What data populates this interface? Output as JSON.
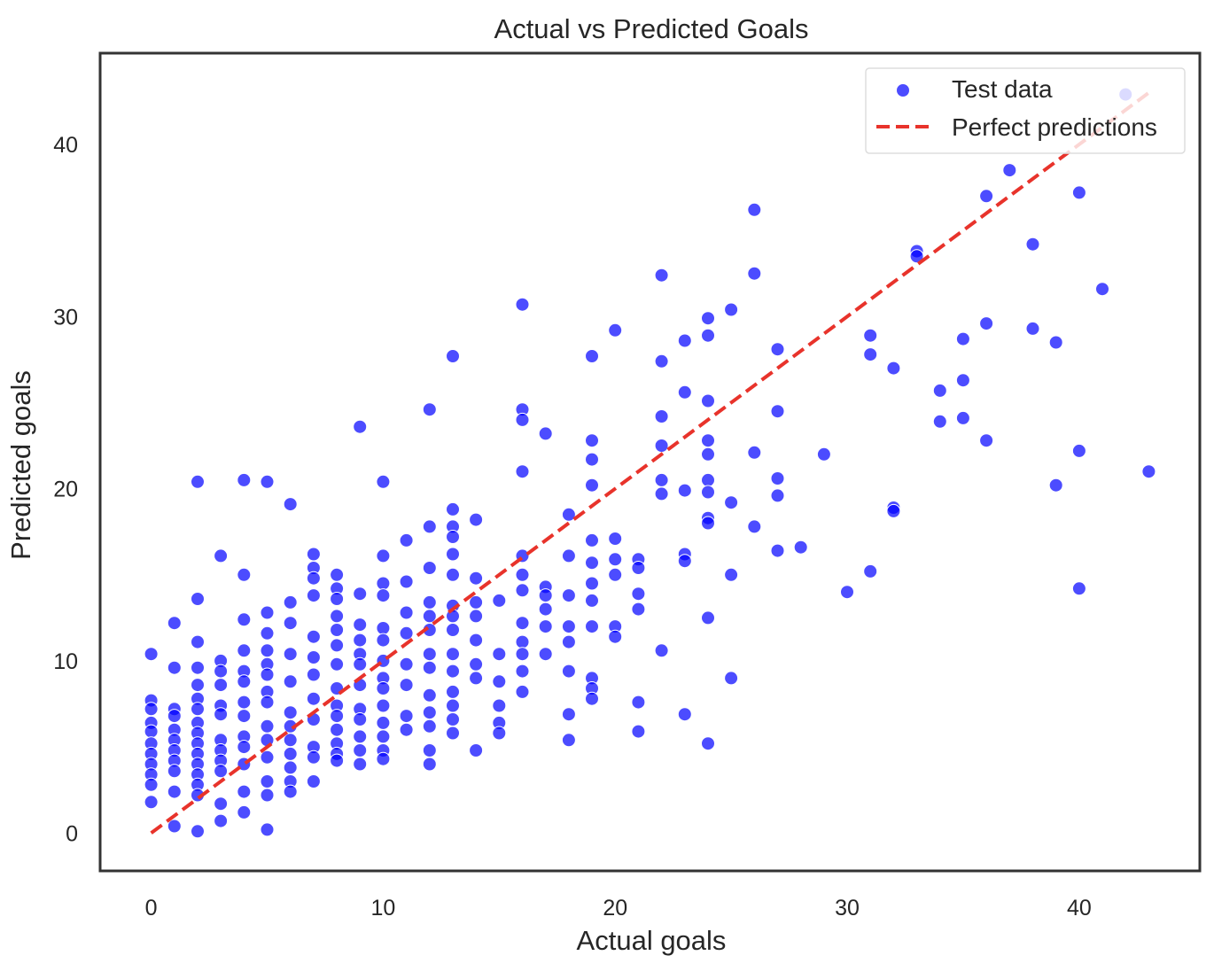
{
  "chart_data": {
    "type": "scatter",
    "title": "Actual vs Predicted Goals",
    "xlabel": "Actual goals",
    "ylabel": "Predicted goals",
    "xlim": [
      -2.2,
      45.2
    ],
    "ylim": [
      -2.2,
      45.3
    ],
    "xticks": [
      0,
      10,
      20,
      30,
      40
    ],
    "yticks": [
      0,
      10,
      20,
      30,
      40
    ],
    "grid": false,
    "legend_position": "top-right",
    "colors": {
      "points": "#0000ff",
      "perfect_line": "#e8332b",
      "frame": "#333333",
      "text": "#262626"
    },
    "series": [
      {
        "name": "Test data",
        "kind": "scatter",
        "points": [
          [
            0,
            10.4
          ],
          [
            0,
            7.7
          ],
          [
            0,
            7.2
          ],
          [
            0,
            6.4
          ],
          [
            0,
            5.9
          ],
          [
            0,
            5.2
          ],
          [
            0,
            4.6
          ],
          [
            0,
            4.0
          ],
          [
            0,
            3.4
          ],
          [
            0,
            2.8
          ],
          [
            0,
            1.8
          ],
          [
            1,
            12.2
          ],
          [
            1,
            9.6
          ],
          [
            1,
            7.2
          ],
          [
            1,
            6.8
          ],
          [
            1,
            6.0
          ],
          [
            1,
            5.4
          ],
          [
            1,
            4.8
          ],
          [
            1,
            4.2
          ],
          [
            1,
            3.6
          ],
          [
            1,
            2.4
          ],
          [
            1,
            0.4
          ],
          [
            2,
            20.4
          ],
          [
            2,
            13.6
          ],
          [
            2,
            11.1
          ],
          [
            2,
            9.6
          ],
          [
            2,
            8.6
          ],
          [
            2,
            7.8
          ],
          [
            2,
            7.2
          ],
          [
            2,
            6.4
          ],
          [
            2,
            5.8
          ],
          [
            2,
            5.2
          ],
          [
            2,
            4.6
          ],
          [
            2,
            4.0
          ],
          [
            2,
            3.4
          ],
          [
            2,
            2.8
          ],
          [
            2,
            2.2
          ],
          [
            2,
            0.1
          ],
          [
            3,
            16.1
          ],
          [
            3,
            10.0
          ],
          [
            3,
            9.4
          ],
          [
            3,
            8.6
          ],
          [
            3,
            7.4
          ],
          [
            3,
            6.9
          ],
          [
            3,
            5.4
          ],
          [
            3,
            4.8
          ],
          [
            3,
            4.2
          ],
          [
            3,
            3.6
          ],
          [
            3,
            1.7
          ],
          [
            3,
            0.7
          ],
          [
            4,
            20.5
          ],
          [
            4,
            15.0
          ],
          [
            4,
            12.4
          ],
          [
            4,
            10.6
          ],
          [
            4,
            9.4
          ],
          [
            4,
            8.8
          ],
          [
            4,
            7.6
          ],
          [
            4,
            6.8
          ],
          [
            4,
            5.6
          ],
          [
            4,
            5.0
          ],
          [
            4,
            4.0
          ],
          [
            4,
            2.4
          ],
          [
            4,
            1.2
          ],
          [
            5,
            20.4
          ],
          [
            5,
            12.8
          ],
          [
            5,
            11.6
          ],
          [
            5,
            10.6
          ],
          [
            5,
            9.8
          ],
          [
            5,
            9.2
          ],
          [
            5,
            8.2
          ],
          [
            5,
            7.6
          ],
          [
            5,
            6.2
          ],
          [
            5,
            5.4
          ],
          [
            5,
            4.4
          ],
          [
            5,
            3.0
          ],
          [
            5,
            2.2
          ],
          [
            5,
            0.2
          ],
          [
            6,
            19.1
          ],
          [
            6,
            13.4
          ],
          [
            6,
            12.2
          ],
          [
            6,
            10.4
          ],
          [
            6,
            8.8
          ],
          [
            6,
            7.0
          ],
          [
            6,
            6.2
          ],
          [
            6,
            5.4
          ],
          [
            6,
            4.6
          ],
          [
            6,
            3.8
          ],
          [
            6,
            3.0
          ],
          [
            6,
            2.4
          ],
          [
            7,
            16.2
          ],
          [
            7,
            15.4
          ],
          [
            7,
            14.8
          ],
          [
            7,
            13.8
          ],
          [
            7,
            11.4
          ],
          [
            7,
            10.2
          ],
          [
            7,
            9.2
          ],
          [
            7,
            7.8
          ],
          [
            7,
            6.6
          ],
          [
            7,
            5.0
          ],
          [
            7,
            4.4
          ],
          [
            7,
            3.0
          ],
          [
            8,
            15.0
          ],
          [
            8,
            14.2
          ],
          [
            8,
            13.6
          ],
          [
            8,
            12.6
          ],
          [
            8,
            11.8
          ],
          [
            8,
            10.9
          ],
          [
            8,
            9.8
          ],
          [
            8,
            8.4
          ],
          [
            8,
            7.4
          ],
          [
            8,
            6.8
          ],
          [
            8,
            6.0
          ],
          [
            8,
            5.2
          ],
          [
            8,
            4.6
          ],
          [
            8,
            4.2
          ],
          [
            9,
            23.6
          ],
          [
            9,
            13.9
          ],
          [
            9,
            12.1
          ],
          [
            9,
            11.2
          ],
          [
            9,
            10.4
          ],
          [
            9,
            9.8
          ],
          [
            9,
            8.6
          ],
          [
            9,
            7.2
          ],
          [
            9,
            6.6
          ],
          [
            9,
            5.6
          ],
          [
            9,
            4.8
          ],
          [
            9,
            4.0
          ],
          [
            10,
            20.4
          ],
          [
            10,
            16.1
          ],
          [
            10,
            14.5
          ],
          [
            10,
            13.8
          ],
          [
            10,
            11.9
          ],
          [
            10,
            11.2
          ],
          [
            10,
            10.0
          ],
          [
            10,
            9.0
          ],
          [
            10,
            8.4
          ],
          [
            10,
            7.4
          ],
          [
            10,
            6.4
          ],
          [
            10,
            5.6
          ],
          [
            10,
            4.8
          ],
          [
            10,
            4.3
          ],
          [
            11,
            17.0
          ],
          [
            11,
            14.6
          ],
          [
            11,
            12.8
          ],
          [
            11,
            11.6
          ],
          [
            11,
            9.8
          ],
          [
            11,
            8.6
          ],
          [
            11,
            6.8
          ],
          [
            11,
            6.0
          ],
          [
            12,
            24.6
          ],
          [
            12,
            17.8
          ],
          [
            12,
            15.4
          ],
          [
            12,
            13.4
          ],
          [
            12,
            12.6
          ],
          [
            12,
            11.8
          ],
          [
            12,
            10.4
          ],
          [
            12,
            9.6
          ],
          [
            12,
            8.0
          ],
          [
            12,
            7.0
          ],
          [
            12,
            6.2
          ],
          [
            12,
            4.8
          ],
          [
            12,
            4.0
          ],
          [
            13,
            27.7
          ],
          [
            13,
            18.8
          ],
          [
            13,
            17.8
          ],
          [
            13,
            17.2
          ],
          [
            13,
            16.2
          ],
          [
            13,
            15.0
          ],
          [
            13,
            13.2
          ],
          [
            13,
            12.6
          ],
          [
            13,
            11.8
          ],
          [
            13,
            10.4
          ],
          [
            13,
            9.4
          ],
          [
            13,
            8.2
          ],
          [
            13,
            7.4
          ],
          [
            13,
            6.6
          ],
          [
            13,
            5.8
          ],
          [
            14,
            18.2
          ],
          [
            14,
            14.8
          ],
          [
            14,
            13.4
          ],
          [
            14,
            12.6
          ],
          [
            14,
            11.2
          ],
          [
            14,
            9.8
          ],
          [
            14,
            9.0
          ],
          [
            14,
            4.8
          ],
          [
            15,
            13.5
          ],
          [
            15,
            10.4
          ],
          [
            15,
            8.8
          ],
          [
            15,
            7.4
          ],
          [
            15,
            6.4
          ],
          [
            15,
            5.8
          ],
          [
            16,
            30.7
          ],
          [
            16,
            24.6
          ],
          [
            16,
            24.0
          ],
          [
            16,
            21.0
          ],
          [
            16,
            16.1
          ],
          [
            16,
            15.0
          ],
          [
            16,
            14.1
          ],
          [
            16,
            12.2
          ],
          [
            16,
            11.1
          ],
          [
            16,
            10.4
          ],
          [
            16,
            9.4
          ],
          [
            16,
            8.2
          ],
          [
            17,
            23.2
          ],
          [
            17,
            14.3
          ],
          [
            17,
            13.8
          ],
          [
            17,
            13.0
          ],
          [
            17,
            12.0
          ],
          [
            17,
            10.4
          ],
          [
            18,
            18.5
          ],
          [
            18,
            16.1
          ],
          [
            18,
            13.8
          ],
          [
            18,
            12.0
          ],
          [
            18,
            11.1
          ],
          [
            18,
            9.4
          ],
          [
            18,
            6.9
          ],
          [
            18,
            5.4
          ],
          [
            19,
            27.7
          ],
          [
            19,
            22.8
          ],
          [
            19,
            21.7
          ],
          [
            19,
            20.2
          ],
          [
            19,
            17.0
          ],
          [
            19,
            15.7
          ],
          [
            19,
            14.5
          ],
          [
            19,
            13.5
          ],
          [
            19,
            12.0
          ],
          [
            19,
            9.0
          ],
          [
            19,
            8.4
          ],
          [
            19,
            7.8
          ],
          [
            20,
            29.2
          ],
          [
            20,
            17.1
          ],
          [
            20,
            15.9
          ],
          [
            20,
            15.0
          ],
          [
            20,
            12.0
          ],
          [
            20,
            11.4
          ],
          [
            21,
            15.9
          ],
          [
            21,
            15.4
          ],
          [
            21,
            13.9
          ],
          [
            21,
            13.0
          ],
          [
            21,
            7.6
          ],
          [
            21,
            5.9
          ],
          [
            22,
            32.4
          ],
          [
            22,
            27.4
          ],
          [
            22,
            24.2
          ],
          [
            22,
            22.5
          ],
          [
            22,
            20.5
          ],
          [
            22,
            19.7
          ],
          [
            22,
            10.6
          ],
          [
            23,
            28.6
          ],
          [
            23,
            25.6
          ],
          [
            23,
            19.9
          ],
          [
            23,
            16.2
          ],
          [
            23,
            15.8
          ],
          [
            23,
            6.9
          ],
          [
            24,
            29.9
          ],
          [
            24,
            28.9
          ],
          [
            24,
            25.1
          ],
          [
            24,
            22.8
          ],
          [
            24,
            22.0
          ],
          [
            24,
            20.5
          ],
          [
            24,
            19.8
          ],
          [
            24,
            18.3
          ],
          [
            24,
            18.0
          ],
          [
            24,
            12.5
          ],
          [
            24,
            5.2
          ],
          [
            25,
            30.4
          ],
          [
            25,
            19.2
          ],
          [
            25,
            15.0
          ],
          [
            25,
            9.0
          ],
          [
            26,
            36.2
          ],
          [
            26,
            32.5
          ],
          [
            26,
            22.1
          ],
          [
            26,
            17.8
          ],
          [
            27,
            28.1
          ],
          [
            27,
            24.5
          ],
          [
            27,
            20.6
          ],
          [
            27,
            19.6
          ],
          [
            27,
            16.4
          ],
          [
            28,
            16.6
          ],
          [
            29,
            22.0
          ],
          [
            30,
            14.0
          ],
          [
            31,
            28.9
          ],
          [
            31,
            27.8
          ],
          [
            31,
            15.2
          ],
          [
            32,
            27.0
          ],
          [
            32,
            18.9
          ],
          [
            32,
            18.7
          ],
          [
            33,
            33.8
          ],
          [
            33,
            33.5
          ],
          [
            34,
            25.7
          ],
          [
            34,
            23.9
          ],
          [
            35,
            28.7
          ],
          [
            35,
            26.3
          ],
          [
            35,
            24.1
          ],
          [
            36,
            37.0
          ],
          [
            36,
            29.6
          ],
          [
            36,
            22.8
          ],
          [
            37,
            38.5
          ],
          [
            38,
            34.2
          ],
          [
            38,
            29.3
          ],
          [
            39,
            28.5
          ],
          [
            39,
            20.2
          ],
          [
            40,
            37.2
          ],
          [
            40,
            22.2
          ],
          [
            40,
            14.2
          ],
          [
            41,
            31.6
          ],
          [
            42,
            42.9
          ],
          [
            43,
            21.0
          ]
        ]
      },
      {
        "name": "Perfect predictions",
        "kind": "line",
        "style": "dashed",
        "points": [
          [
            0,
            0
          ],
          [
            43,
            43
          ]
        ]
      }
    ]
  }
}
